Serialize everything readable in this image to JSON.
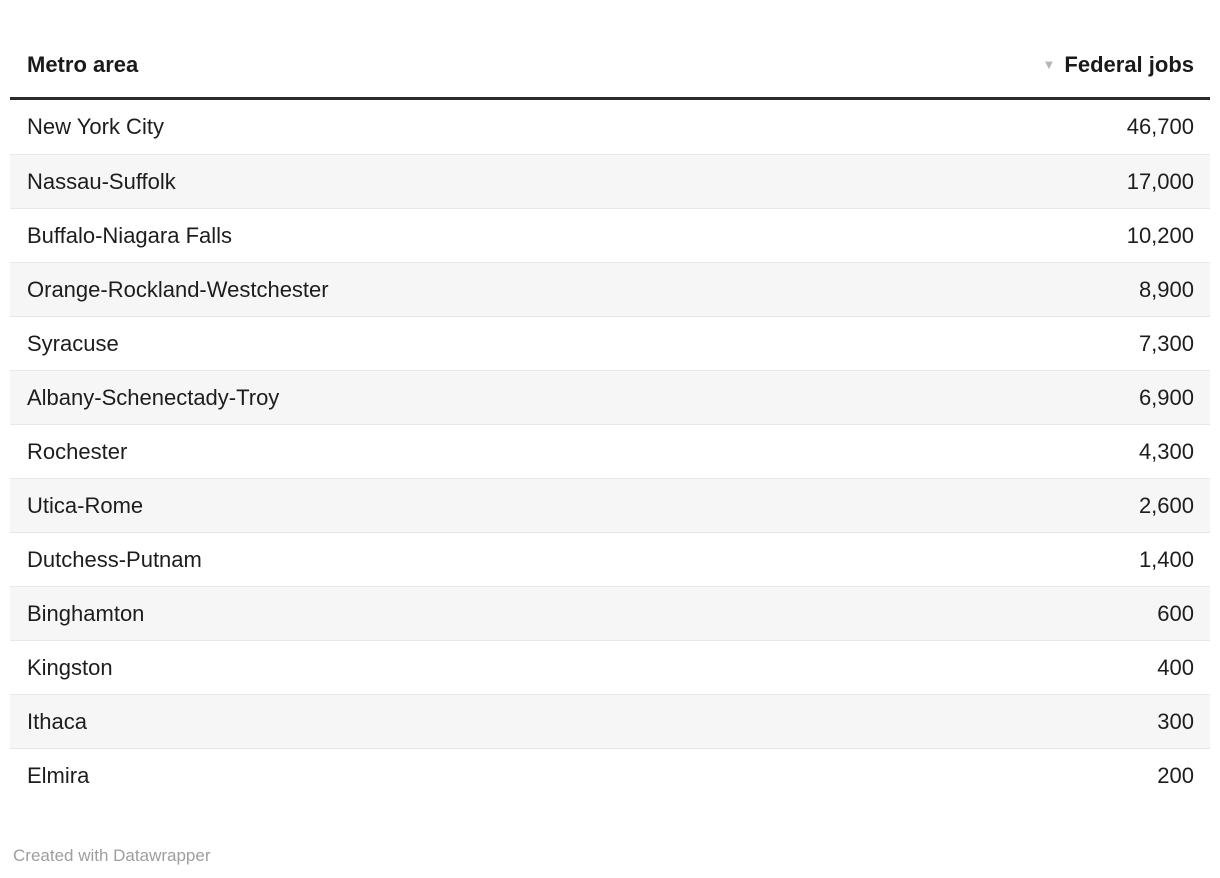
{
  "chart_data": {
    "type": "table",
    "columns": [
      "Metro area",
      "Federal jobs"
    ],
    "sort": {
      "column": "Federal jobs",
      "direction": "descending"
    },
    "rows": [
      {
        "metro_area": "New York City",
        "federal_jobs": 46700,
        "federal_jobs_display": "46,700"
      },
      {
        "metro_area": "Nassau-Suffolk",
        "federal_jobs": 17000,
        "federal_jobs_display": "17,000"
      },
      {
        "metro_area": "Buffalo-Niagara Falls",
        "federal_jobs": 10200,
        "federal_jobs_display": "10,200"
      },
      {
        "metro_area": "Orange-Rockland-Westchester",
        "federal_jobs": 8900,
        "federal_jobs_display": "8,900"
      },
      {
        "metro_area": "Syracuse",
        "federal_jobs": 7300,
        "federal_jobs_display": "7,300"
      },
      {
        "metro_area": "Albany-Schenectady-Troy",
        "federal_jobs": 6900,
        "federal_jobs_display": "6,900"
      },
      {
        "metro_area": "Rochester",
        "federal_jobs": 4300,
        "federal_jobs_display": "4,300"
      },
      {
        "metro_area": "Utica-Rome",
        "federal_jobs": 2600,
        "federal_jobs_display": "2,600"
      },
      {
        "metro_area": "Dutchess-Putnam",
        "federal_jobs": 1400,
        "federal_jobs_display": "1,400"
      },
      {
        "metro_area": "Binghamton",
        "federal_jobs": 600,
        "federal_jobs_display": "600"
      },
      {
        "metro_area": "Kingston",
        "federal_jobs": 400,
        "federal_jobs_display": "400"
      },
      {
        "metro_area": "Ithaca",
        "federal_jobs": 300,
        "federal_jobs_display": "300"
      },
      {
        "metro_area": "Elmira",
        "federal_jobs": 200,
        "federal_jobs_display": "200"
      }
    ]
  },
  "header": {
    "sort_icon": "▼"
  },
  "footer": {
    "attribution": "Created with Datawrapper"
  },
  "colors": {
    "text": "#1d1d1d",
    "header_rule": "#2b2b2b",
    "row_stripe": "#f6f6f6",
    "row_border": "#e8e8e8",
    "sort_icon": "#b5b5b5",
    "footer_text": "#9e9e9e"
  }
}
